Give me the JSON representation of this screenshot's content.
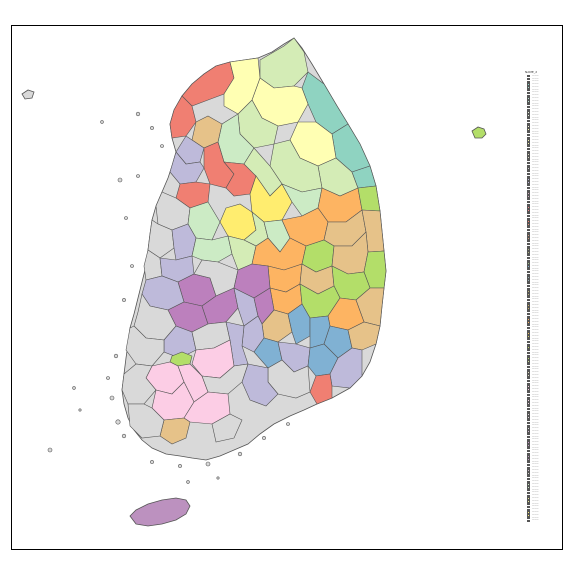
{
  "map": {
    "region_fill_cycle": [
      "#8fd3c1",
      "#d4ecb6",
      "#ffffb3",
      "#f07f72",
      "#bebada",
      "#fdb462",
      "#b3de69",
      "#fccde5",
      "#d9d9d9",
      "#bc80bd",
      "#ccebc5",
      "#ffed6f",
      "#80b1d3",
      "#e6c289"
    ],
    "outline_color": "#555555"
  },
  "legend": {
    "title": "NAME_2",
    "entry_count": 160,
    "entry_label": "———",
    "colors": [
      "#8dd3c7",
      "#a3dacb",
      "#b9e1d0",
      "#cfe8d4",
      "#e5efd9",
      "#fbf6dd",
      "#ffffb3",
      "#f3f2ad",
      "#e7e5b8",
      "#dbd9c3",
      "#cfcdce",
      "#c3c0d9",
      "#bebada",
      "#d1a9c1",
      "#e398a7",
      "#f6878e",
      "#fb8072",
      "#e88d76",
      "#d4997a",
      "#c1a67e",
      "#adb382",
      "#99bf86",
      "#80b1d3",
      "#94b1b6",
      "#a8b199",
      "#bcb17c",
      "#d0b15f",
      "#e4b142",
      "#fdb462",
      "#e9c063",
      "#d6cc64",
      "#c2d865",
      "#b3de69",
      "#c9dd94",
      "#dfdcbf",
      "#f5dbea",
      "#fccde5",
      "#f2cfe2",
      "#e8d1df",
      "#dfd3dc",
      "#d9d9d9",
      "#cfb8cf",
      "#c599c5",
      "#bc80bd",
      "#c39bc2",
      "#cbb6c7",
      "#d3d1cc",
      "#ccebc5",
      "#dbebae",
      "#ebec97",
      "#fbec80",
      "#ffed6f"
    ]
  }
}
